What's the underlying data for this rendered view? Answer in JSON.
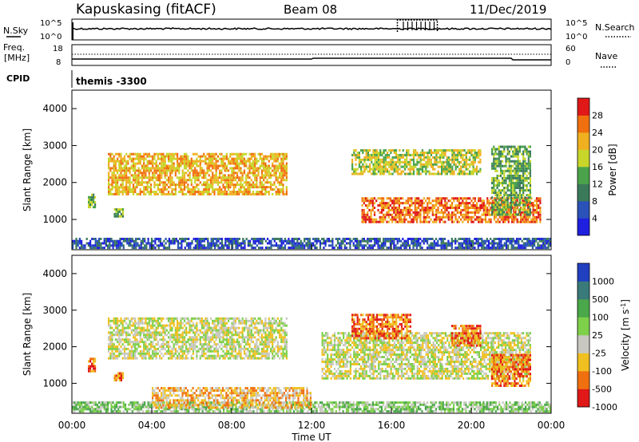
{
  "header": {
    "station": "Kapuskasing (fitACF)",
    "beam": "Beam 08",
    "date": "11/Dec/2019"
  },
  "nsky_panel": {
    "left_label": "N.Sky",
    "left_ticks": [
      "10^5",
      "10^0"
    ],
    "right_label": "N.Search",
    "right_ticks": [
      "10^5",
      "10^0"
    ]
  },
  "freq_panel": {
    "left_label_1": "Freq.",
    "left_label_2": "[MHz]",
    "left_ticks": [
      "18",
      "8"
    ],
    "right_label": "Nave",
    "right_ticks": [
      "60",
      "0"
    ]
  },
  "cpid_panel": {
    "label": "CPID",
    "program": "themis -3300"
  },
  "chart_data": [
    {
      "type": "heatmap",
      "name": "power-panel",
      "ylabel": "Slant Range [km]",
      "xlabel": "",
      "x_range_hours": [
        0,
        24
      ],
      "ylim": [
        180,
        4500
      ],
      "yticks": [
        "1000",
        "2000",
        "3000",
        "4000"
      ],
      "colorbar_label": "Power [dB]",
      "colorbar_ticks": [
        "4",
        "8",
        "12",
        "16",
        "20",
        "24",
        "28"
      ],
      "colorbar_colors": [
        "#1f1fe0",
        "#2a52b8",
        "#3a7a5a",
        "#4aa34a",
        "#c8d62a",
        "#f0b020",
        "#f07010",
        "#e01818"
      ],
      "echo_regions": [
        {
          "t0": 0.0,
          "t1": 24.0,
          "r0": 200,
          "r1": 500,
          "level": 1
        },
        {
          "t0": 1.8,
          "t1": 10.8,
          "r0": 1650,
          "r1": 2800,
          "level": 5
        },
        {
          "t0": 14.5,
          "t1": 23.5,
          "r0": 900,
          "r1": 1600,
          "level": 6
        },
        {
          "t0": 14.0,
          "t1": 20.5,
          "r0": 2200,
          "r1": 2900,
          "level": 4
        },
        {
          "t0": 21.0,
          "t1": 23.0,
          "r0": 1100,
          "r1": 3000,
          "level": 3
        },
        {
          "t0": 0.8,
          "t1": 1.2,
          "r0": 1300,
          "r1": 1700,
          "level": 3
        },
        {
          "t0": 2.1,
          "t1": 2.6,
          "r0": 1050,
          "r1": 1300,
          "level": 3
        }
      ]
    },
    {
      "type": "heatmap",
      "name": "velocity-panel",
      "ylabel": "Slant Range [km]",
      "xlabel": "Time UT",
      "x_range_hours": [
        0,
        24
      ],
      "xticks": [
        "00:00",
        "04:00",
        "08:00",
        "12:00",
        "16:00",
        "20:00",
        "00:00"
      ],
      "ylim": [
        180,
        4500
      ],
      "yticks": [
        "1000",
        "2000",
        "3000",
        "4000"
      ],
      "colorbar_label": "Velocity [m s",
      "colorbar_exponent": "-1",
      "colorbar_label_end": "]",
      "colorbar_ticks": [
        "1000",
        "500",
        "100",
        "25",
        "-25",
        "-100",
        "-500",
        "-1000"
      ],
      "colorbar_colors": [
        "#2040c0",
        "#3a7a7a",
        "#4aa84a",
        "#7ed04a",
        "#c8c8c0",
        "#f0c020",
        "#f07010",
        "#e01818"
      ],
      "echo_regions": [
        {
          "t0": 0.0,
          "t1": 24.0,
          "r0": 200,
          "r1": 500,
          "level": 3
        },
        {
          "t0": 1.8,
          "t1": 10.8,
          "r0": 1650,
          "r1": 2800,
          "level": 4
        },
        {
          "t0": 12.5,
          "t1": 23.0,
          "r0": 1100,
          "r1": 2400,
          "level": 4
        },
        {
          "t0": 14.0,
          "t1": 17.0,
          "r0": 2200,
          "r1": 2900,
          "level": 6
        },
        {
          "t0": 19.0,
          "t1": 20.5,
          "r0": 2000,
          "r1": 2600,
          "level": 6
        },
        {
          "t0": 21.0,
          "t1": 23.0,
          "r0": 900,
          "r1": 1800,
          "level": 6
        },
        {
          "t0": 4.0,
          "t1": 12.0,
          "r0": 300,
          "r1": 900,
          "level": 5
        },
        {
          "t0": 0.8,
          "t1": 1.2,
          "r0": 1300,
          "r1": 1700,
          "level": 6
        },
        {
          "t0": 2.1,
          "t1": 2.6,
          "r0": 1050,
          "r1": 1300,
          "level": 6
        }
      ]
    }
  ]
}
